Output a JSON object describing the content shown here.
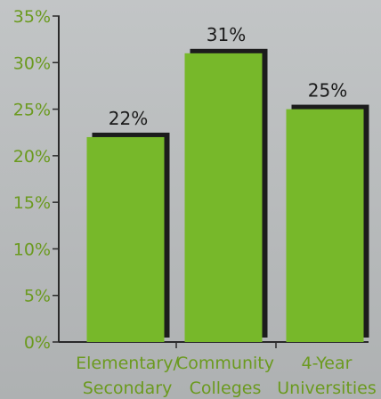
{
  "chart_data": {
    "type": "bar",
    "categories": [
      [
        "Elementary/",
        "Secondary"
      ],
      [
        "Community",
        "Colleges"
      ],
      [
        "4-Year",
        "Universities"
      ]
    ],
    "values": [
      22,
      31,
      25
    ],
    "value_labels": [
      "22%",
      "31%",
      "25%"
    ],
    "yticks": [
      0,
      5,
      10,
      15,
      20,
      25,
      30,
      35
    ],
    "ytick_labels": [
      "0%",
      "5%",
      "10%",
      "15%",
      "20%",
      "25%",
      "30%",
      "35%"
    ],
    "ylim": [
      0,
      35
    ],
    "title": "",
    "xlabel": "",
    "ylabel": "",
    "grid": false,
    "colors": {
      "bar": "#77b82a",
      "bar_shadow": "#1c1c1c",
      "tick_text": "#6b9a1f",
      "value_text": "#1b1b1b",
      "background": "#b9bcbd"
    }
  }
}
